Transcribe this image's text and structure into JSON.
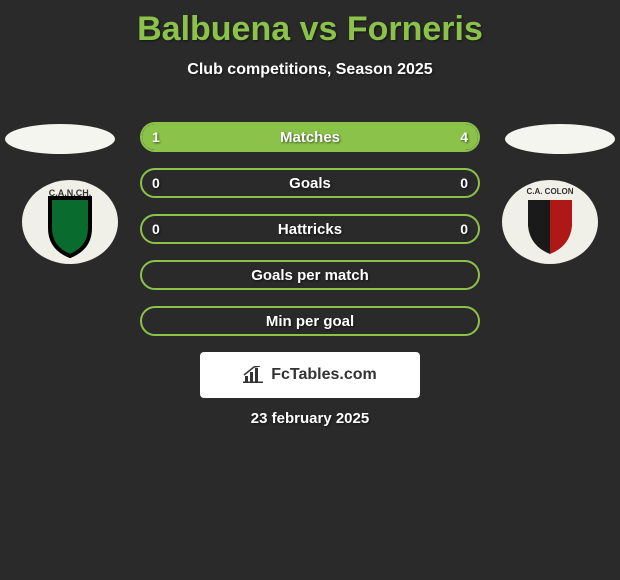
{
  "title": "Balbuena vs Forneris",
  "subtitle": "Club competitions, Season 2025",
  "date": "23 february 2025",
  "attribution": "FcTables.com",
  "colors": {
    "accent": "#8bc34a",
    "background": "#2a2a2a",
    "text": "#ffffff",
    "attribution_bg": "#ffffff",
    "attribution_text": "#333333"
  },
  "crest_left": {
    "text": "C.A.N.CH.",
    "shield_fill": "#0a6b2f",
    "shield_stroke": "#000000",
    "ring": "#f0f0e8"
  },
  "crest_right": {
    "text": "C.A. COLON",
    "left_fill": "#1a1a1a",
    "right_fill": "#b01818",
    "ring": "#f0f0e8"
  },
  "bars": [
    {
      "label": "Matches",
      "left_val": "1",
      "right_val": "4",
      "left_pct": 20,
      "right_pct": 80
    },
    {
      "label": "Goals",
      "left_val": "0",
      "right_val": "0",
      "left_pct": 0,
      "right_pct": 0
    },
    {
      "label": "Hattricks",
      "left_val": "0",
      "right_val": "0",
      "left_pct": 0,
      "right_pct": 0
    },
    {
      "label": "Goals per match",
      "left_val": "",
      "right_val": "",
      "left_pct": 0,
      "right_pct": 0
    },
    {
      "label": "Min per goal",
      "left_val": "",
      "right_val": "",
      "left_pct": 0,
      "right_pct": 0
    }
  ]
}
